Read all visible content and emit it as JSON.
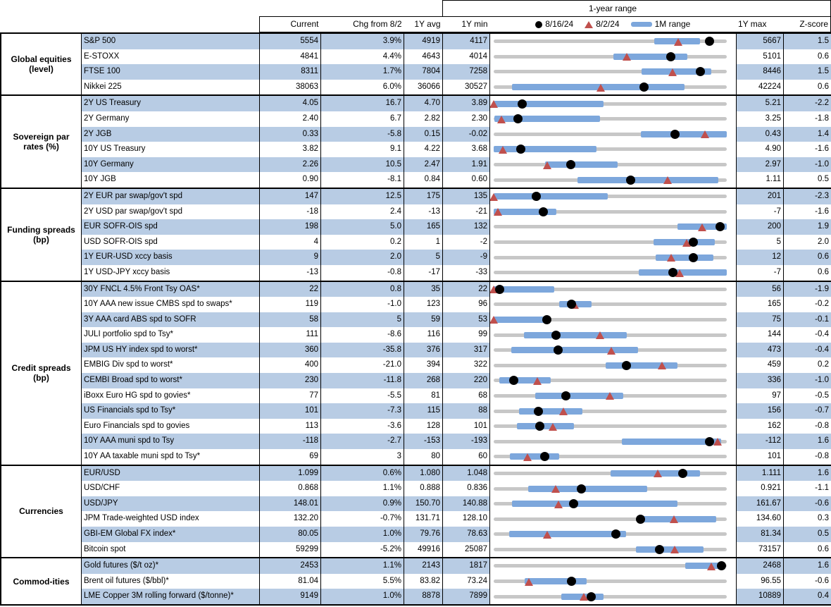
{
  "colors": {
    "stripe": "#b8cce4",
    "bar": "#7da7dc",
    "track": "#c7c7c7",
    "triangle": "#c0504d",
    "dot": "#000000",
    "border": "#000000"
  },
  "header": {
    "range_title": "1-year range",
    "current": "Current",
    "chg": "Chg from 8/2",
    "avg": "1Y avg",
    "min": "1Y min",
    "max": "1Y max",
    "z": "Z-score",
    "legend_dot_label": "8/16/24",
    "legend_tri_label": "8/2/24",
    "legend_bar_label": "1M range"
  },
  "chart_data": {
    "type": "table",
    "title": "1-year range",
    "legend": [
      {
        "marker": "black-dot",
        "label": "8/16/24"
      },
      {
        "marker": "red-triangle",
        "label": "8/2/24"
      },
      {
        "marker": "blue-bar",
        "label": "1M range"
      }
    ],
    "columns": [
      "Current",
      "Chg from 8/2",
      "1Y avg",
      "1Y min",
      "1-year range",
      "1Y max",
      "Z-score"
    ],
    "note": "dot/tri/bar are fractional positions (0-1) of the 8/16/24 marker, 8/2/24 marker and 1M-range bar within the 1Y min..1Y max track",
    "sections": [
      {
        "group": "Global equities (level)",
        "rows": [
          {
            "label": "S&P 500",
            "current": "5554",
            "chg": "3.9%",
            "avg": "4919",
            "min": "4117",
            "max": "5667",
            "z": "1.5",
            "dot": 0.927,
            "tri": 0.792,
            "bar": [
              0.69,
              0.885
            ]
          },
          {
            "label": "E-STOXX",
            "current": "4841",
            "chg": "4.4%",
            "avg": "4643",
            "min": "4014",
            "max": "5101",
            "z": "0.6",
            "dot": 0.761,
            "tri": 0.573,
            "bar": [
              0.515,
              0.83
            ]
          },
          {
            "label": "FTSE 100",
            "current": "8311",
            "chg": "1.7%",
            "avg": "7804",
            "min": "7258",
            "max": "8446",
            "z": "1.5",
            "dot": 0.886,
            "tri": 0.77,
            "bar": [
              0.633,
              0.934
            ]
          },
          {
            "label": "Nikkei 225",
            "current": "38063",
            "chg": "6.0%",
            "avg": "36066",
            "min": "30527",
            "max": "42224",
            "z": "0.6",
            "dot": 0.644,
            "tri": 0.46,
            "bar": [
              0.08,
              0.818
            ]
          }
        ]
      },
      {
        "group": "Sovereign par rates (%)",
        "rows": [
          {
            "label": "2Y US Treasury",
            "current": "4.05",
            "chg": "16.7",
            "avg": "4.70",
            "min": "3.89",
            "max": "5.21",
            "z": "-2.2",
            "dot": 0.121,
            "tri": 0.0,
            "bar": [
              0,
              0.47
            ]
          },
          {
            "label": "2Y Germany",
            "current": "2.40",
            "chg": "6.7",
            "avg": "2.82",
            "min": "2.30",
            "max": "3.25",
            "z": "-1.8",
            "dot": 0.105,
            "tri": 0.035,
            "bar": [
              0.003,
              0.455
            ]
          },
          {
            "label": "2Y JGB",
            "current": "0.33",
            "chg": "-5.8",
            "avg": "0.15",
            "min": "-0.02",
            "max": "0.43",
            "z": "1.4",
            "dot": 0.778,
            "tri": 0.907,
            "bar": [
              0.63,
              1.0
            ]
          },
          {
            "label": "10Y US Treasury",
            "current": "3.82",
            "chg": "9.1",
            "avg": "4.22",
            "min": "3.68",
            "max": "4.90",
            "z": "-1.6",
            "dot": 0.115,
            "tri": 0.04,
            "bar": [
              0,
              0.44
            ]
          },
          {
            "label": "10Y Germany",
            "current": "2.26",
            "chg": "10.5",
            "avg": "2.47",
            "min": "1.91",
            "max": "2.97",
            "z": "-1.0",
            "dot": 0.33,
            "tri": 0.231,
            "bar": [
              0.22,
              0.533
            ]
          },
          {
            "label": "10Y JGB",
            "current": "0.90",
            "chg": "-8.1",
            "avg": "0.84",
            "min": "0.60",
            "max": "1.11",
            "z": "0.5",
            "dot": 0.588,
            "tri": 0.747,
            "bar": [
              0.36,
              0.963
            ]
          }
        ]
      },
      {
        "group": "Funding spreads (bp)",
        "rows": [
          {
            "label": "2Y EUR par swap/gov't spd",
            "current": "147",
            "chg": "12.5",
            "avg": "175",
            "min": "135",
            "max": "201",
            "z": "-2.3",
            "dot": 0.182,
            "tri": 0.0,
            "bar": [
              0,
              0.49
            ]
          },
          {
            "label": "2Y USD par swap/gov't spd",
            "current": "-18",
            "chg": "2.4",
            "avg": "-13",
            "min": "-21",
            "max": "-7",
            "z": "-1.6",
            "dot": 0.214,
            "tri": 0.02,
            "bar": [
              0,
              0.268
            ]
          },
          {
            "label": "EUR SOFR-OIS spd",
            "current": "198",
            "chg": "5.0",
            "avg": "165",
            "min": "132",
            "max": "200",
            "z": "1.9",
            "dot": 0.97,
            "tri": 0.897,
            "bar": [
              0.79,
              1.0
            ]
          },
          {
            "label": "USD SOFR-OIS spd",
            "current": "4",
            "chg": "0.2",
            "avg": "1",
            "min": "-2",
            "max": "5",
            "z": "2.0",
            "dot": 0.857,
            "tri": 0.828,
            "bar": [
              0.687,
              0.95
            ]
          },
          {
            "label": "1Y EUR-USD xccy basis",
            "current": "9",
            "chg": "2.0",
            "avg": "5",
            "min": "-9",
            "max": "12",
            "z": "0.6",
            "dot": 0.857,
            "tri": 0.762,
            "bar": [
              0.695,
              0.943
            ]
          },
          {
            "label": "1Y USD-JPY xccy basis",
            "current": "-13",
            "chg": "-0.8",
            "avg": "-17",
            "min": "-33",
            "max": "-7",
            "z": "0.6",
            "dot": 0.77,
            "tri": 0.8,
            "bar": [
              0.622,
              1.0
            ]
          }
        ]
      },
      {
        "group": "Credit spreads (bp)",
        "rows": [
          {
            "label": "30Y FNCL 4.5% Front Tsy OAS*",
            "current": "22",
            "chg": "0.8",
            "avg": "35",
            "min": "22",
            "max": "56",
            "z": "-1.9",
            "dot": 0.025,
            "tri": 0.0,
            "bar": [
              0,
              0.26
            ]
          },
          {
            "label": "10Y AAA new issue CMBS spd to swaps*",
            "current": "119",
            "chg": "-1.0",
            "avg": "123",
            "min": "96",
            "max": "165",
            "z": "-0.2",
            "dot": 0.333,
            "tri": 0.348,
            "bar": [
              0.28,
              0.42
            ]
          },
          {
            "label": "3Y AAA card ABS spd to SOFR",
            "current": "58",
            "chg": "5",
            "avg": "59",
            "min": "53",
            "max": "75",
            "z": "-0.1",
            "dot": 0.227,
            "tri": 0.0,
            "bar": [
              0,
              0.23
            ]
          },
          {
            "label": "JULI portfolio spd to Tsy*",
            "current": "111",
            "chg": "-8.6",
            "avg": "116",
            "min": "99",
            "max": "144",
            "z": "-0.4",
            "dot": 0.267,
            "tri": 0.458,
            "bar": [
              0.13,
              0.57
            ]
          },
          {
            "label": "JPM US HY index spd to worst*",
            "current": "360",
            "chg": "-35.8",
            "avg": "376",
            "min": "317",
            "max": "473",
            "z": "-0.4",
            "dot": 0.276,
            "tri": 0.505,
            "bar": [
              0.075,
              0.62
            ]
          },
          {
            "label": "EMBIG Div spd to worst*",
            "current": "400",
            "chg": "-21.0",
            "avg": "394",
            "min": "322",
            "max": "459",
            "z": "0.2",
            "dot": 0.569,
            "tri": 0.723,
            "bar": [
              0.48,
              0.79
            ]
          },
          {
            "label": "CEMBI Broad spd to worst*",
            "current": "230",
            "chg": "-11.8",
            "avg": "268",
            "min": "220",
            "max": "336",
            "z": "-1.0",
            "dot": 0.086,
            "tri": 0.188,
            "bar": [
              0.025,
              0.245
            ]
          },
          {
            "label": "iBoxx Euro HG spd to govies*",
            "current": "77",
            "chg": "-5.5",
            "avg": "81",
            "min": "68",
            "max": "97",
            "z": "-0.5",
            "dot": 0.31,
            "tri": 0.5,
            "bar": [
              0.177,
              0.555
            ]
          },
          {
            "label": "US Financials spd to Tsy*",
            "current": "101",
            "chg": "-7.3",
            "avg": "115",
            "min": "88",
            "max": "156",
            "z": "-0.7",
            "dot": 0.191,
            "tri": 0.3,
            "bar": [
              0.11,
              0.38
            ]
          },
          {
            "label": "Euro Financials spd to govies",
            "current": "113",
            "chg": "-3.6",
            "avg": "128",
            "min": "101",
            "max": "162",
            "z": "-0.8",
            "dot": 0.197,
            "tri": 0.256,
            "bar": [
              0.1,
              0.345
            ]
          },
          {
            "label": "10Y AAA muni spd to Tsy",
            "current": "-118",
            "chg": "-2.7",
            "avg": "-153",
            "min": "-193",
            "max": "-112",
            "z": "1.6",
            "dot": 0.926,
            "tri": 0.963,
            "bar": [
              0.55,
              0.975
            ]
          },
          {
            "label": "10Y AA taxable muni spd to Tsy*",
            "current": "69",
            "chg": "3",
            "avg": "80",
            "min": "60",
            "max": "101",
            "z": "-0.8",
            "dot": 0.22,
            "tri": 0.146,
            "bar": [
              0.07,
              0.28
            ]
          }
        ]
      },
      {
        "group": "Currencies",
        "rows": [
          {
            "label": "EUR/USD",
            "current": "1.099",
            "chg": "0.6%",
            "avg": "1.080",
            "min": "1.048",
            "max": "1.111",
            "z": "1.6",
            "dot": 0.81,
            "tri": 0.705,
            "bar": [
              0.5,
              0.885
            ]
          },
          {
            "label": "USD/CHF",
            "current": "0.868",
            "chg": "1.1%",
            "avg": "0.888",
            "min": "0.836",
            "max": "0.921",
            "z": "-1.1",
            "dot": 0.376,
            "tri": 0.266,
            "bar": [
              0.148,
              0.66
            ]
          },
          {
            "label": "USD/JPY",
            "current": "148.01",
            "chg": "0.9%",
            "avg": "150.70",
            "min": "140.88",
            "max": "161.67",
            "z": "-0.6",
            "dot": 0.343,
            "tri": 0.279,
            "bar": [
              0.08,
              0.79
            ]
          },
          {
            "label": "JPM Trade-weighted USD index",
            "current": "132.20",
            "chg": "-0.7%",
            "avg": "131.71",
            "min": "128.10",
            "max": "134.60",
            "z": "0.3",
            "dot": 0.63,
            "tri": 0.774,
            "bar": [
              0.64,
              0.955
            ]
          },
          {
            "label": "GBI-EM Global FX index*",
            "current": "80.05",
            "chg": "1.0%",
            "avg": "79.76",
            "min": "78.63",
            "max": "81.34",
            "z": "0.5",
            "dot": 0.524,
            "tri": 0.232,
            "bar": [
              0.067,
              0.567
            ]
          },
          {
            "label": "Bitcoin spot",
            "current": "59299",
            "chg": "-5.2%",
            "avg": "49916",
            "min": "25087",
            "max": "73157",
            "z": "0.6",
            "dot": 0.712,
            "tri": 0.779,
            "bar": [
              0.61,
              0.9
            ]
          }
        ]
      },
      {
        "group": "Commod-ities",
        "rows": [
          {
            "label": "Gold futures ($/t oz)*",
            "current": "2453",
            "chg": "1.1%",
            "avg": "2143",
            "min": "1817",
            "max": "2468",
            "z": "1.6",
            "dot": 0.977,
            "tri": 0.936,
            "bar": [
              0.822,
              0.988
            ]
          },
          {
            "label": "Brent oil futures ($/bbl)*",
            "current": "81.04",
            "chg": "5.5%",
            "avg": "83.82",
            "min": "73.24",
            "max": "96.55",
            "z": "-0.6",
            "dot": 0.335,
            "tri": 0.153,
            "bar": [
              0.133,
              0.4
            ]
          },
          {
            "label": "LME Copper 3M rolling forward ($/tonne)*",
            "current": "9149",
            "chg": "1.0%",
            "avg": "8878",
            "min": "7899",
            "max": "10889",
            "z": "0.4",
            "dot": 0.418,
            "tri": 0.388,
            "bar": [
              0.29,
              0.47
            ]
          }
        ]
      }
    ]
  }
}
